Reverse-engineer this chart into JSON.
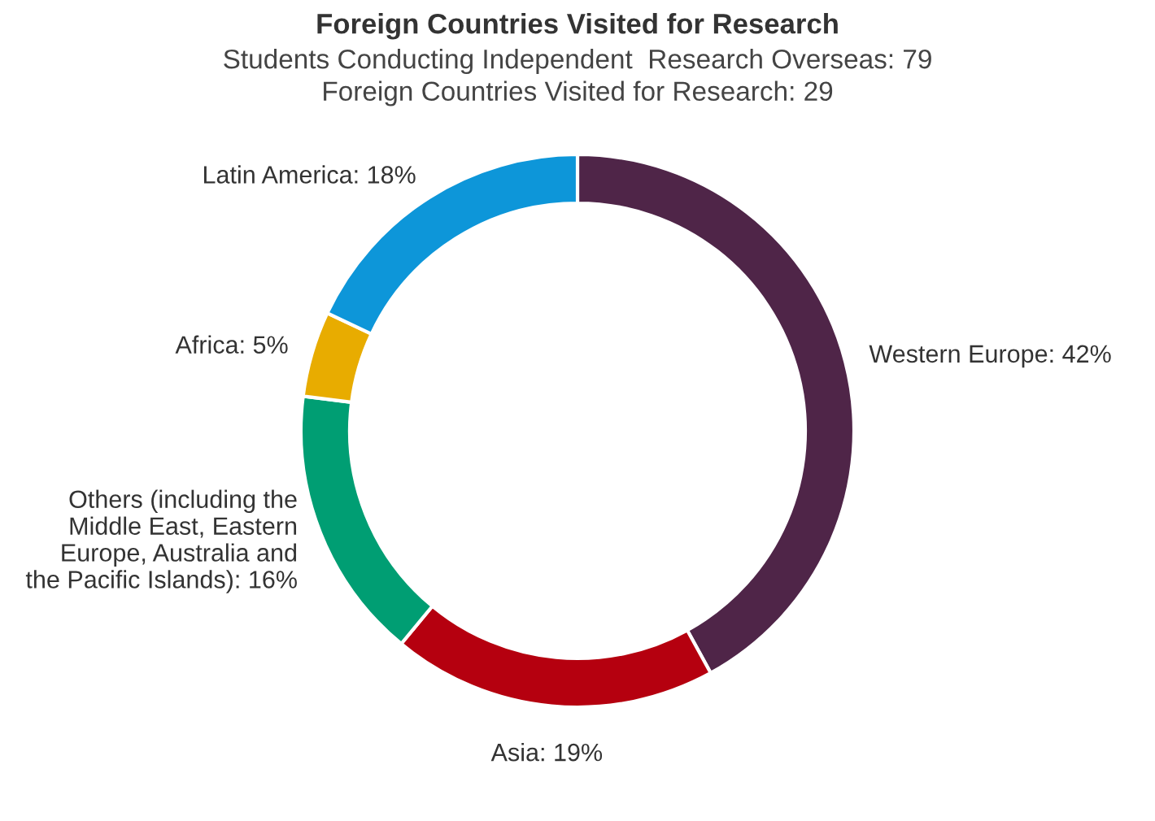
{
  "chart_data": {
    "type": "donut",
    "title": "Foreign Countries Visited for Research",
    "subtitle": "Students Conducting Independent  Research Overseas: 79\nForeign Countries Visited for Research: 29",
    "categories": [
      "Western Europe",
      "Asia",
      "Others (including the Middle East, Eastern Europe, Australia and the Pacific Islands)",
      "Africa",
      "Latin America"
    ],
    "values": [
      42,
      19,
      16,
      5,
      18
    ],
    "value_labels": [
      "42%",
      "19%",
      "16%",
      "5%",
      "18%"
    ],
    "colors": [
      "#4f2548",
      "#b5000f",
      "#009e73",
      "#e8ac00",
      "#0d96d9"
    ]
  }
}
